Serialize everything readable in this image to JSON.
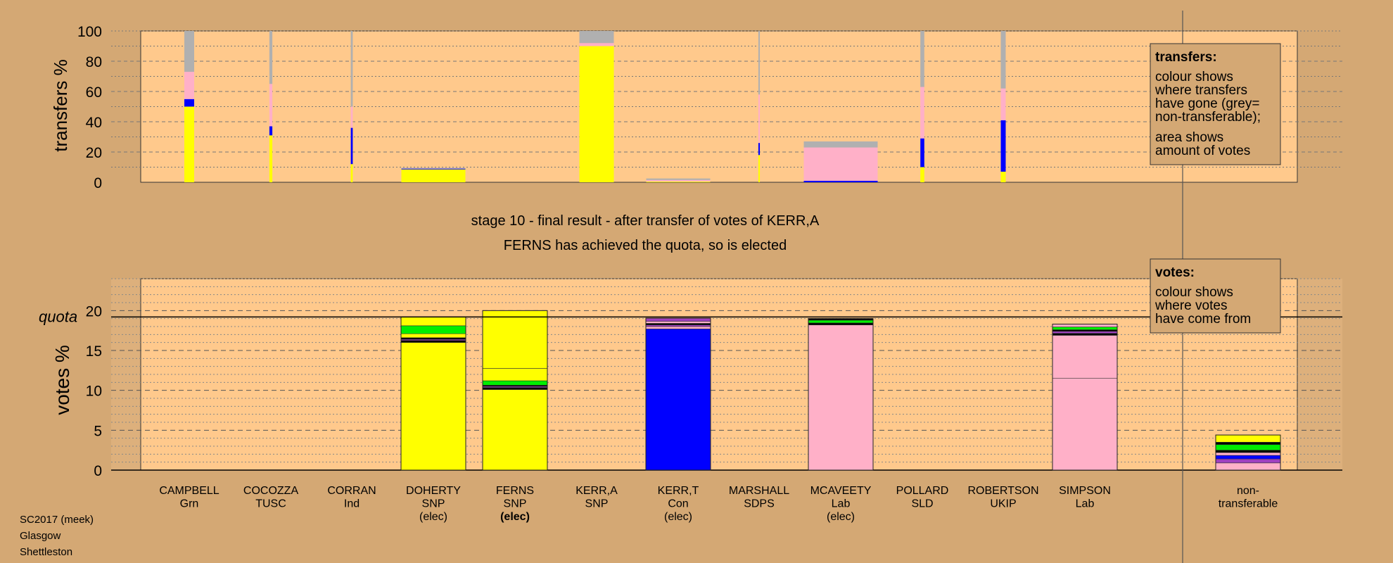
{
  "colors": {
    "background": "#d4a874",
    "plot_area": "#ffc98c",
    "snp": "#ffff00",
    "con": "#0000ff",
    "lab": "#ffb0c8",
    "grn": "#00ee00",
    "non_transferable": "#b0b0b0",
    "black": "#000000",
    "purple": "#a040c0"
  },
  "title": {
    "line1": "stage 10 - final result - after transfer of votes of KERR,A",
    "line2": "FERNS has achieved the quota, so is elected"
  },
  "footer": [
    "SC2017 (meek)",
    "Glasgow",
    "Shettleston"
  ],
  "candidates": [
    {
      "name": "CAMPBELL",
      "party": "Grn",
      "status": ""
    },
    {
      "name": "COCOZZA",
      "party": "TUSC",
      "status": ""
    },
    {
      "name": "CORRAN",
      "party": "Ind",
      "status": ""
    },
    {
      "name": "DOHERTY",
      "party": "SNP",
      "status": "(elec)"
    },
    {
      "name": "FERNS",
      "party": "SNP",
      "status": "(elec)"
    },
    {
      "name": "KERR,A",
      "party": "SNP",
      "status": ""
    },
    {
      "name": "KERR,T",
      "party": "Con",
      "status": "(elec)"
    },
    {
      "name": "MARSHALL",
      "party": "SDPS",
      "status": ""
    },
    {
      "name": "MCAVEETY",
      "party": "Lab",
      "status": "(elec)"
    },
    {
      "name": "POLLARD",
      "party": "SLD",
      "status": ""
    },
    {
      "name": "ROBERTSON",
      "party": "UKIP",
      "status": ""
    },
    {
      "name": "SIMPSON",
      "party": "Lab",
      "status": ""
    },
    {
      "name": "non-",
      "party": "transferable",
      "status": ""
    }
  ],
  "chart_data": [
    {
      "type": "bar",
      "ylabel": "transfers %",
      "ylim": [
        0,
        100
      ],
      "yticks": [
        0,
        20,
        40,
        60,
        80,
        100
      ],
      "grid": true,
      "legend": {
        "position": "top-right",
        "title": "transfers:",
        "lines": [
          "colour shows",
          "where transfers",
          "have gone (grey=",
          "non-transferable);",
          "area shows",
          "amount of votes"
        ]
      },
      "bars": [
        {
          "candidate": "CAMPBELL",
          "width": 1,
          "segments": [
            {
              "color": "snp",
              "value": 50
            },
            {
              "color": "con",
              "value": 5
            },
            {
              "color": "lab",
              "value": 18
            },
            {
              "color": "non_transferable",
              "value": 27
            }
          ]
        },
        {
          "candidate": "COCOZZA",
          "width": 0.3,
          "segments": [
            {
              "color": "snp",
              "value": 31
            },
            {
              "color": "con",
              "value": 6
            },
            {
              "color": "lab",
              "value": 28
            },
            {
              "color": "non_transferable",
              "value": 35
            }
          ]
        },
        {
          "candidate": "CORRAN",
          "width": 0.2,
          "segments": [
            {
              "color": "snp",
              "value": 12
            },
            {
              "color": "con",
              "value": 24
            },
            {
              "color": "lab",
              "value": 14
            },
            {
              "color": "non_transferable",
              "value": 50
            }
          ]
        },
        {
          "candidate": "DOHERTY",
          "width": 6.5,
          "segments": [
            {
              "color": "snp",
              "value": 8.5
            },
            {
              "color": "con",
              "value": 0.5
            },
            {
              "color": "non_transferable",
              "value": 0.5
            }
          ]
        },
        {
          "candidate": "KERR,A",
          "width": 3.5,
          "segments": [
            {
              "color": "snp",
              "value": 90
            },
            {
              "color": "lab",
              "value": 2
            },
            {
              "color": "non_transferable",
              "value": 8
            }
          ]
        },
        {
          "candidate": "KERR,T",
          "width": 6.5,
          "segments": [
            {
              "color": "snp",
              "value": 0.5
            },
            {
              "color": "lab",
              "value": 1
            },
            {
              "color": "non_transferable",
              "value": 1
            }
          ]
        },
        {
          "candidate": "MARSHALL",
          "width": 0.15,
          "segments": [
            {
              "color": "snp",
              "value": 18
            },
            {
              "color": "con",
              "value": 8
            },
            {
              "color": "lab",
              "value": 32
            },
            {
              "color": "non_transferable",
              "value": 42
            }
          ]
        },
        {
          "candidate": "MCAVEETY",
          "width": 7.5,
          "segments": [
            {
              "color": "con",
              "value": 1
            },
            {
              "color": "lab",
              "value": 22
            },
            {
              "color": "non_transferable",
              "value": 4
            }
          ]
        },
        {
          "candidate": "POLLARD",
          "width": 0.4,
          "segments": [
            {
              "color": "snp",
              "value": 10
            },
            {
              "color": "con",
              "value": 19
            },
            {
              "color": "lab",
              "value": 34
            },
            {
              "color": "non_transferable",
              "value": 37
            }
          ]
        },
        {
          "candidate": "ROBERTSON",
          "width": 0.5,
          "segments": [
            {
              "color": "snp",
              "value": 7
            },
            {
              "color": "con",
              "value": 34
            },
            {
              "color": "lab",
              "value": 21
            },
            {
              "color": "non_transferable",
              "value": 38
            }
          ]
        }
      ]
    },
    {
      "type": "bar",
      "stacked": true,
      "ylabel": "votes %",
      "ylim": [
        0,
        24
      ],
      "yticks": [
        0,
        5,
        10,
        15,
        20
      ],
      "quota": 19.2,
      "quota_label": "quota",
      "grid": true,
      "legend": {
        "position": "top-right",
        "title": "votes:",
        "lines": [
          "colour shows",
          "where votes",
          "have come from"
        ]
      },
      "bars": [
        {
          "candidate": "DOHERTY",
          "segments": [
            {
              "color": "snp",
              "value": 16.0
            },
            {
              "color": "black",
              "value": 0.25
            },
            {
              "color": "purple",
              "value": 0.15
            },
            {
              "color": "black",
              "value": 0.2
            },
            {
              "color": "snp",
              "value": 0.5
            },
            {
              "color": "grn",
              "value": 1.0
            },
            {
              "color": "snp",
              "value": 1.1
            }
          ]
        },
        {
          "candidate": "FERNS",
          "segments": [
            {
              "color": "snp",
              "value": 10.1
            },
            {
              "color": "black",
              "value": 0.25
            },
            {
              "color": "purple",
              "value": 0.15
            },
            {
              "color": "black",
              "value": 0.15
            },
            {
              "color": "grn",
              "value": 0.55
            },
            {
              "color": "snp",
              "value": 1.55
            },
            {
              "color": "snp",
              "value": 7.25
            }
          ]
        },
        {
          "candidate": "KERR,T",
          "segments": [
            {
              "color": "con",
              "value": 17.7
            },
            {
              "color": "lab",
              "value": 0.3
            },
            {
              "color": "purple",
              "value": 0.2
            },
            {
              "color": "black",
              "value": 0.2
            },
            {
              "color": "lab",
              "value": 0.25
            },
            {
              "color": "purple",
              "value": 0.4
            }
          ]
        },
        {
          "candidate": "MCAVEETY",
          "segments": [
            {
              "color": "lab",
              "value": 18.2
            },
            {
              "color": "black",
              "value": 0.25
            },
            {
              "color": "grn",
              "value": 0.35
            },
            {
              "color": "black",
              "value": 0.2
            }
          ]
        },
        {
          "candidate": "SIMPSON",
          "segments": [
            {
              "color": "lab",
              "value": 11.5
            },
            {
              "color": "lab",
              "value": 5.4
            },
            {
              "color": "black",
              "value": 0.25
            },
            {
              "color": "purple",
              "value": 0.25
            },
            {
              "color": "black",
              "value": 0.2
            },
            {
              "color": "grn",
              "value": 0.35
            },
            {
              "color": "lab",
              "value": 0.35
            }
          ]
        },
        {
          "candidate": "non-transferable",
          "segments": [
            {
              "color": "lab",
              "value": 0.9
            },
            {
              "color": "purple",
              "value": 0.5
            },
            {
              "color": "con",
              "value": 0.45
            },
            {
              "color": "lab",
              "value": 0.35
            },
            {
              "color": "black",
              "value": 0.3
            },
            {
              "color": "grn",
              "value": 0.7
            },
            {
              "color": "black",
              "value": 0.3
            },
            {
              "color": "snp",
              "value": 0.9
            }
          ]
        }
      ]
    }
  ]
}
